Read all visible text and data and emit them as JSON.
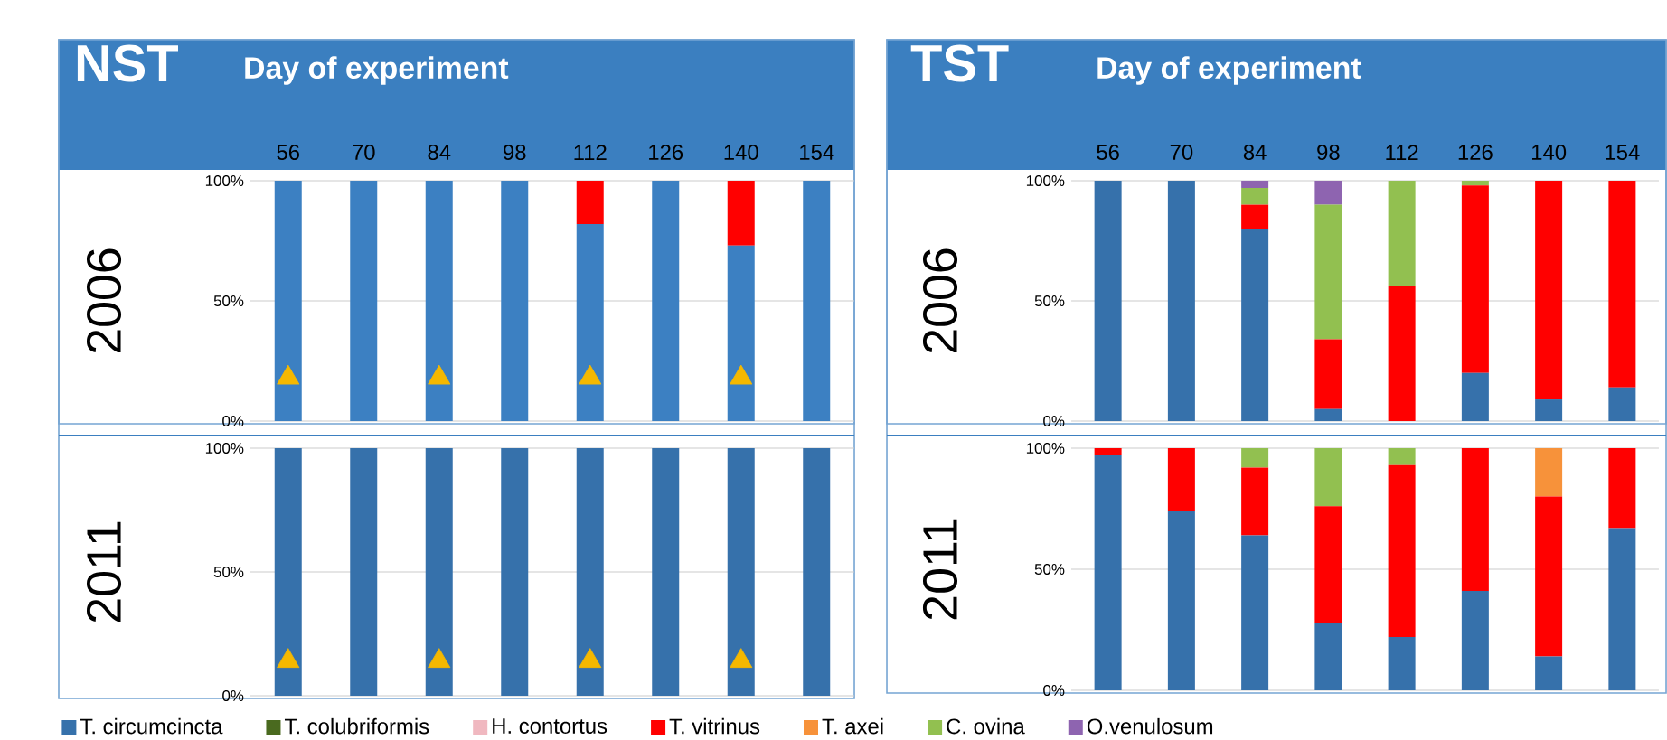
{
  "chart_data": [
    {
      "type": "bar",
      "stacked": true,
      "title": "NST",
      "xlabel": "Day of experiment",
      "ylabel": "2006",
      "categories": [
        "56",
        "70",
        "84",
        "98",
        "112",
        "126",
        "140",
        "154"
      ],
      "ylim": [
        0,
        100
      ],
      "yticks": [
        {
          "value": 0,
          "label": "0%"
        },
        {
          "value": 50,
          "label": "50%"
        },
        {
          "value": 100,
          "label": "100%"
        }
      ],
      "grid": "y",
      "series": [
        {
          "color": "#3c80c2",
          "values": [
            100,
            100,
            100,
            100,
            82,
            100,
            73,
            100
          ]
        },
        {
          "color": "#ff0000",
          "values": [
            0,
            0,
            0,
            0,
            18,
            0,
            27,
            0
          ]
        },
        {
          "type": "scatter",
          "marker": "triangle",
          "color": "#f5b800",
          "x": [
            "56",
            "84",
            "112",
            "140"
          ],
          "values": [
            18,
            18,
            18,
            18
          ]
        }
      ]
    },
    {
      "type": "bar",
      "stacked": true,
      "title": "TST",
      "xlabel": "Day of experiment",
      "ylabel": "2006",
      "categories": [
        "56",
        "70",
        "84",
        "98",
        "112",
        "126",
        "140",
        "154"
      ],
      "ylim": [
        0,
        100
      ],
      "yticks": [
        {
          "value": 0,
          "label": "0%"
        },
        {
          "value": 50,
          "label": "50%"
        },
        {
          "value": 100,
          "label": "100%"
        }
      ],
      "grid": "y",
      "series": [
        {
          "color": "#3671ab",
          "values": [
            100,
            100,
            80,
            5,
            0,
            20,
            9,
            14
          ]
        },
        {
          "color": "#ff0000",
          "values": [
            0,
            0,
            10,
            29,
            56,
            78,
            91,
            86
          ]
        },
        {
          "color": "#92c050",
          "values": [
            0,
            0,
            7,
            56,
            44,
            2,
            0,
            0
          ]
        },
        {
          "color": "#8e64b0",
          "values": [
            0,
            0,
            3,
            10,
            0,
            0,
            0,
            0
          ]
        }
      ]
    },
    {
      "type": "bar",
      "stacked": true,
      "ylabel": "2011",
      "categories": [
        "56",
        "70",
        "84",
        "98",
        "112",
        "126",
        "140",
        "154"
      ],
      "tick_labels": "y",
      "ylim": [
        0,
        100
      ],
      "yticks": [
        {
          "value": 0,
          "label": "0%"
        },
        {
          "value": 50,
          "label": "50%"
        },
        {
          "value": 100,
          "label": "100%"
        }
      ],
      "grid": "y",
      "series": [
        {
          "color": "#3671ab",
          "values": [
            100,
            100,
            100,
            100,
            100,
            100,
            100,
            100
          ]
        },
        {
          "type": "scatter",
          "marker": "triangle",
          "color": "#f5b800",
          "x": [
            "56",
            "84",
            "112",
            "140"
          ],
          "values": [
            14,
            14,
            14,
            14
          ]
        }
      ]
    },
    {
      "type": "bar",
      "stacked": true,
      "ylabel": "2011",
      "categories": [
        "56",
        "70",
        "84",
        "98",
        "112",
        "126",
        "140",
        "154"
      ],
      "tick_labels": "y",
      "ylim": [
        0,
        100
      ],
      "yticks": [
        {
          "value": 0,
          "label": "0%"
        },
        {
          "value": 50,
          "label": "50%"
        },
        {
          "value": 100,
          "label": "100%"
        }
      ],
      "grid": "y",
      "legend": "bottom",
      "series": [
        {
          "name": "T. circumcincta",
          "color": "#3671ab",
          "values": [
            97,
            74,
            64,
            28,
            22,
            41,
            14,
            67
          ]
        },
        {
          "name": "T. colubriformis",
          "color": "#4a6a1f",
          "values": [
            0,
            0,
            0,
            0,
            0,
            0,
            0,
            0
          ]
        },
        {
          "name": "H. contortus",
          "color": "#f0b8c0",
          "values": [
            0,
            0,
            0,
            0,
            0,
            0,
            0,
            0
          ]
        },
        {
          "name": "T. vitrinus",
          "color": "#ff0000",
          "values": [
            3,
            26,
            28,
            48,
            71,
            59,
            66,
            33
          ]
        },
        {
          "name": "T. axei",
          "color": "#f7923a",
          "values": [
            0,
            0,
            0,
            0,
            0,
            0,
            20,
            0
          ]
        },
        {
          "name": "C. ovina",
          "color": "#92c050",
          "values": [
            0,
            0,
            8,
            24,
            7,
            0,
            0,
            0
          ]
        },
        {
          "name": "O.venulosum",
          "color": "#8e64b0",
          "values": [
            0,
            0,
            0,
            0,
            0,
            0,
            0,
            0
          ]
        }
      ]
    }
  ]
}
